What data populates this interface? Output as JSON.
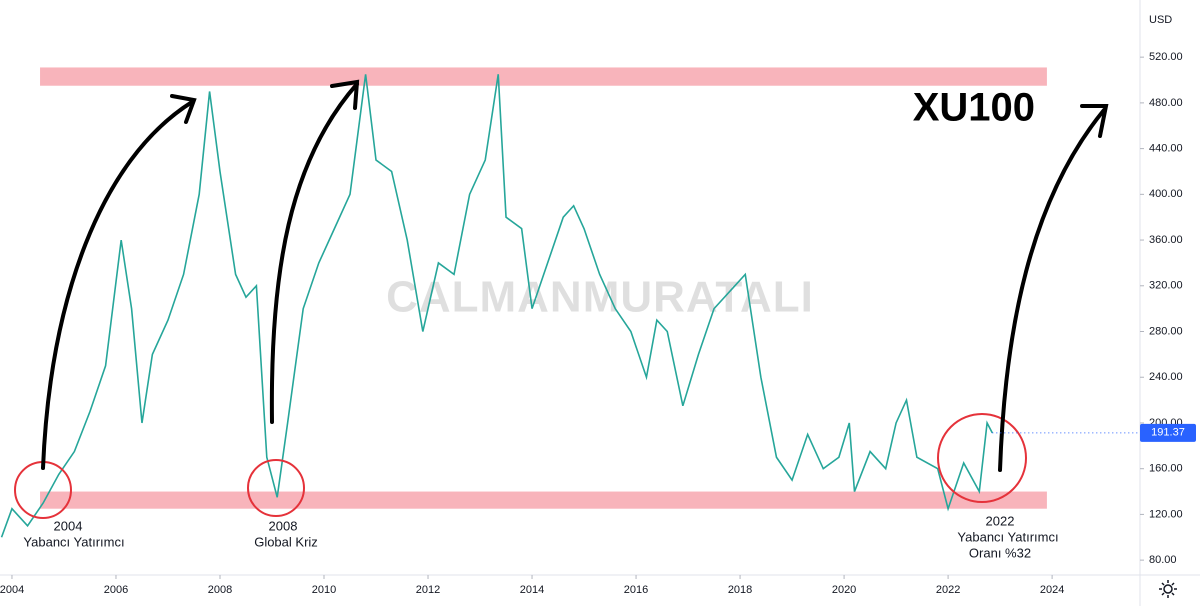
{
  "chart_data": {
    "type": "line",
    "title": "XU100",
    "currency": "USD",
    "watermark": "CALMANMURATALI",
    "last_price": {
      "value": 191.37,
      "label": "191.37"
    },
    "color": "#26a69a",
    "band_color": "#f8b4bb",
    "bands": [
      {
        "from": 495,
        "to": 511,
        "x": [
          2004.54,
          2023.9
        ]
      },
      {
        "from": 125,
        "to": 140,
        "x": [
          2004.54,
          2023.9
        ]
      }
    ],
    "annotations": [
      {
        "year": "2004",
        "text": [
          "Yabancı Yatırımcı"
        ]
      },
      {
        "year": "2008",
        "text": [
          "Global Kriz"
        ]
      },
      {
        "year": "2022",
        "text": [
          "Yabancı Yatırımcı",
          "Oranı %32"
        ]
      }
    ],
    "x": [
      2003.8,
      2004.0,
      2004.3,
      2004.6,
      2004.9,
      2005.2,
      2005.5,
      2005.8,
      2006.1,
      2006.3,
      2006.5,
      2006.7,
      2007.0,
      2007.3,
      2007.6,
      2007.8,
      2008.0,
      2008.3,
      2008.5,
      2008.7,
      2008.9,
      2009.1,
      2009.3,
      2009.6,
      2009.9,
      2010.2,
      2010.5,
      2010.8,
      2011.0,
      2011.3,
      2011.6,
      2011.9,
      2012.2,
      2012.5,
      2012.8,
      2013.1,
      2013.35,
      2013.5,
      2013.8,
      2014.0,
      2014.3,
      2014.6,
      2014.8,
      2015.0,
      2015.3,
      2015.6,
      2015.9,
      2016.2,
      2016.4,
      2016.6,
      2016.9,
      2017.2,
      2017.5,
      2017.9,
      2018.1,
      2018.4,
      2018.7,
      2019.0,
      2019.3,
      2019.6,
      2019.9,
      2020.1,
      2020.2,
      2020.5,
      2020.8,
      2021.0,
      2021.2,
      2021.4,
      2021.8,
      2022.0,
      2022.3,
      2022.6,
      2022.75,
      2022.85
    ],
    "values": [
      100,
      125,
      110,
      130,
      155,
      175,
      210,
      250,
      360,
      300,
      200,
      260,
      290,
      330,
      400,
      490,
      420,
      330,
      310,
      320,
      170,
      135,
      200,
      300,
      340,
      370,
      400,
      505,
      430,
      420,
      360,
      280,
      340,
      330,
      400,
      430,
      505,
      380,
      370,
      300,
      340,
      380,
      390,
      370,
      330,
      300,
      280,
      240,
      290,
      280,
      215,
      260,
      300,
      320,
      330,
      240,
      170,
      150,
      190,
      160,
      170,
      200,
      140,
      175,
      160,
      200,
      220,
      170,
      160,
      125,
      165,
      140,
      200,
      191.37
    ],
    "xlim": [
      2003.77,
      2025.69
    ],
    "ylim": [
      67,
      570
    ],
    "xticks": [
      2004,
      2006,
      2008,
      2010,
      2012,
      2014,
      2016,
      2018,
      2020,
      2022,
      2024
    ],
    "yticks": [
      {
        "value": 80,
        "label": "80.00"
      },
      {
        "value": 120,
        "label": "120.00"
      },
      {
        "value": 160,
        "label": "160.00"
      },
      {
        "value": 200,
        "label": "200.00"
      },
      {
        "value": 240,
        "label": "240.00"
      },
      {
        "value": 280,
        "label": "280.00"
      },
      {
        "value": 320,
        "label": "320.00"
      },
      {
        "value": 360,
        "label": "360.00"
      },
      {
        "value": 400,
        "label": "400.00"
      },
      {
        "value": 440,
        "label": "440.00"
      },
      {
        "value": 480,
        "label": "480.00"
      },
      {
        "value": 520,
        "label": "520.00"
      }
    ]
  }
}
